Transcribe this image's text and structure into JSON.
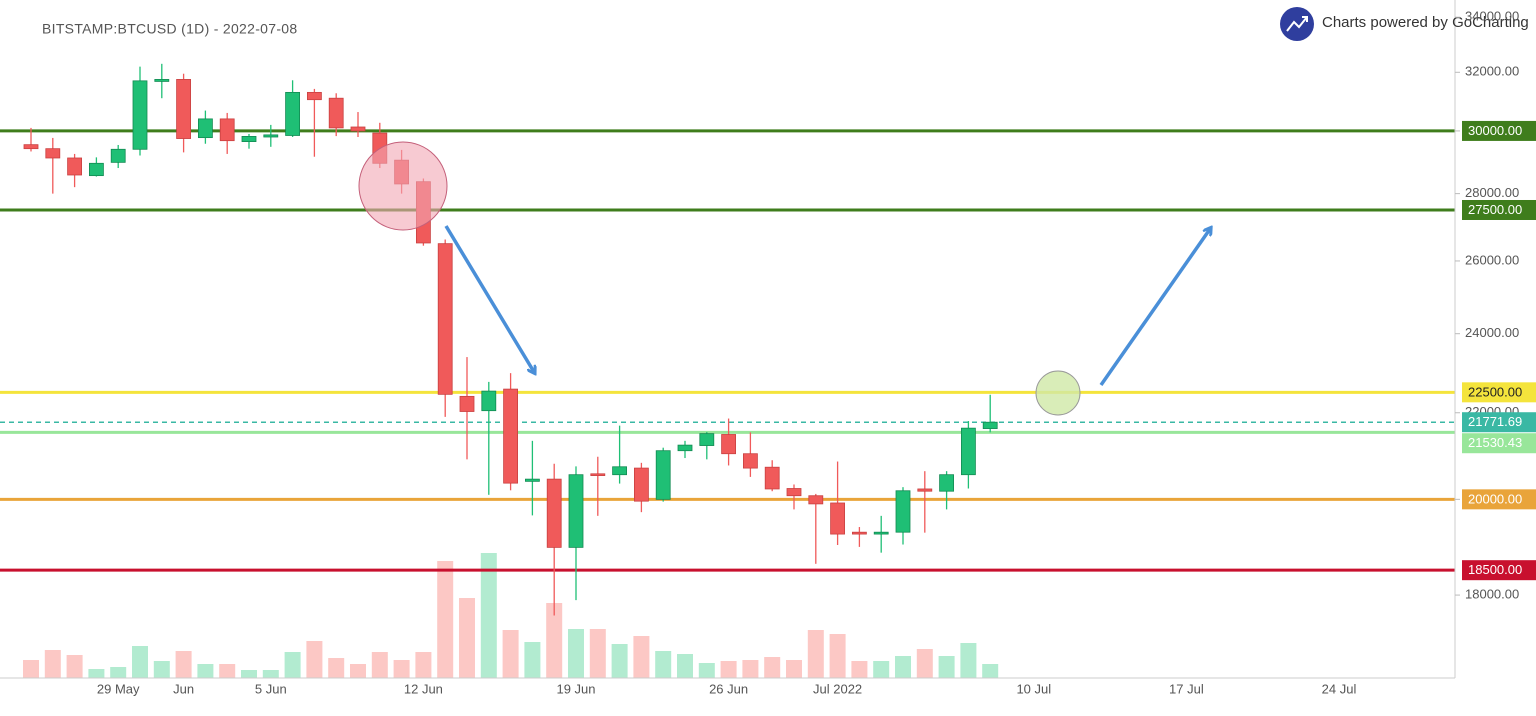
{
  "chart_data": {
    "type": "candlestick",
    "title": "BITSTAMP:BTCUSD (1D) - 2022-07-08",
    "watermark": "Charts powered by GoCharting",
    "log_scale": true,
    "ylim": [
      16430,
      34650
    ],
    "yticks": [
      {
        "value": 34000,
        "label": "34000.00"
      },
      {
        "value": 32000,
        "label": "32000.00"
      },
      {
        "value": 30000,
        "label": "30000.00"
      },
      {
        "value": 28000,
        "label": "28000.00"
      },
      {
        "value": 26000,
        "label": "26000.00"
      },
      {
        "value": 24000,
        "label": "24000.00"
      },
      {
        "value": 22000,
        "label": "22000.00"
      },
      {
        "value": 20000,
        "label": "20000.00"
      },
      {
        "value": 18000,
        "label": "18000.00"
      }
    ],
    "categories": [
      null,
      null,
      null,
      null,
      "29 May",
      null,
      null,
      "Jun",
      null,
      null,
      null,
      "5 Jun",
      null,
      null,
      null,
      null,
      null,
      null,
      "12 Jun",
      null,
      null,
      null,
      null,
      null,
      null,
      "19 Jun",
      null,
      null,
      null,
      null,
      null,
      null,
      "26 Jun",
      null,
      null,
      null,
      null,
      "Jul 2022",
      null,
      null,
      null,
      null,
      null,
      null,
      null,
      null,
      "10 Jul",
      null,
      null,
      null,
      null,
      null,
      null,
      "17 Jul",
      null,
      null,
      null,
      null,
      null,
      null,
      "24 Jul",
      null,
      null,
      null,
      null,
      null
    ],
    "up_color": "#1fbf75",
    "down_color": "#f05a5a",
    "volume_up_color": "#b2ebd0",
    "volume_down_color": "#fcc8c5",
    "open": [
      29550,
      29420,
      29120,
      28560,
      28980,
      29400,
      31680,
      31750,
      29780,
      30400,
      29650,
      29800,
      29850,
      31300,
      31100,
      30130,
      29930,
      29050,
      28370,
      26500,
      22400,
      22050,
      22580,
      20400,
      20450,
      18970,
      20570,
      20550,
      20700,
      20000,
      21100,
      21220,
      21480,
      21030,
      20720,
      20240,
      20080,
      19920,
      19290,
      19250,
      19290,
      20230,
      20180,
      20550,
      21620,
      null,
      null,
      null,
      null,
      null,
      null,
      null,
      null,
      null,
      null,
      null,
      null,
      null,
      null,
      null,
      null,
      null,
      null,
      null,
      null,
      null
    ],
    "high": [
      30100,
      29770,
      29250,
      29140,
      29540,
      32200,
      32300,
      31950,
      30680,
      30600,
      29900,
      30200,
      31720,
      31420,
      31270,
      30630,
      30270,
      29380,
      28470,
      26620,
      23390,
      22760,
      22980,
      21330,
      20800,
      20740,
      20960,
      21690,
      20820,
      21170,
      21330,
      21540,
      21860,
      21530,
      20880,
      20330,
      20120,
      20850,
      19400,
      19640,
      20270,
      20630,
      20630,
      21800,
      22440,
      null,
      null,
      null,
      null,
      null,
      null,
      null,
      null,
      null,
      null,
      null,
      null,
      null,
      null,
      null,
      null,
      null,
      null,
      null,
      null,
      null
    ],
    "low": [
      29330,
      28000,
      28200,
      28530,
      28800,
      29200,
      31100,
      29300,
      29580,
      29250,
      29420,
      29480,
      29800,
      29160,
      29830,
      29800,
      28800,
      28000,
      26440,
      21900,
      20900,
      20100,
      20200,
      19650,
      17600,
      17900,
      19640,
      20350,
      19720,
      19950,
      20930,
      20900,
      20760,
      20500,
      20180,
      19780,
      18630,
      19020,
      18980,
      18860,
      19030,
      19280,
      19780,
      20240,
      21530,
      null,
      null,
      null,
      null,
      null,
      null,
      null,
      null,
      null,
      null,
      null,
      null,
      null,
      null,
      null,
      null,
      null,
      null,
      null,
      null,
      null
    ],
    "close": [
      29420,
      29120,
      28580,
      28950,
      29400,
      31700,
      31750,
      29750,
      30400,
      29680,
      29820,
      29870,
      31300,
      31050,
      30100,
      30000,
      28950,
      28300,
      26520,
      22450,
      22030,
      22530,
      20360,
      20450,
      18970,
      20550,
      20530,
      20730,
      19960,
      21100,
      21230,
      21500,
      21030,
      20700,
      20230,
      20080,
      19900,
      19250,
      19250,
      19290,
      20190,
      20180,
      20550,
      21630,
      21771.69,
      null,
      null,
      null,
      null,
      null,
      null,
      null,
      null,
      null,
      null,
      null,
      null,
      null,
      null,
      null,
      null,
      null,
      null,
      null,
      null,
      null
    ],
    "volume": [
      18,
      28,
      23,
      9,
      11,
      32,
      17,
      27,
      14,
      14,
      8,
      8,
      26,
      37,
      20,
      14,
      26,
      18,
      26,
      117,
      80,
      125,
      48,
      36,
      75,
      49,
      49,
      34,
      42,
      27,
      24,
      15,
      17,
      18,
      21,
      18,
      48,
      44,
      17,
      17,
      22,
      29,
      22,
      35,
      14,
      null,
      null,
      null,
      null,
      null,
      null,
      null,
      null,
      null,
      null,
      null,
      null,
      null,
      null,
      null,
      null,
      null,
      null,
      null,
      null,
      null
    ],
    "levels": [
      {
        "value": 30000,
        "label": "30000.00",
        "color": "#3f7d1c",
        "label_color": "#ffffff"
      },
      {
        "value": 27500,
        "label": "27500.00",
        "color": "#3f7d1c",
        "label_color": "#ffffff"
      },
      {
        "value": 22500,
        "label": "22500.00",
        "color": "#f4e43c",
        "label_color": "#222222"
      },
      {
        "value": 21771.69,
        "label": "21771.69",
        "color": "#3ab8a4",
        "label_color": "#ffffff",
        "dashed": true
      },
      {
        "value": 21530.43,
        "label": "21530.43",
        "color": "#98e69a",
        "label_color": "#ffffff"
      },
      {
        "value": 20000,
        "label": "20000.00",
        "color": "#e9a43a",
        "label_color": "#ffffff"
      },
      {
        "value": 18500,
        "label": "18500.00",
        "color": "#c8102e",
        "label_color": "#ffffff"
      }
    ]
  }
}
